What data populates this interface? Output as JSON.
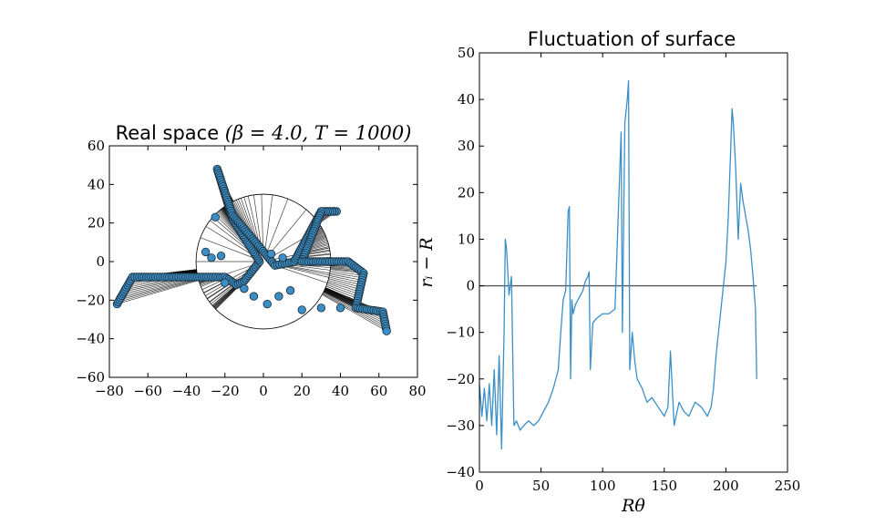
{
  "chart_data": [
    {
      "type": "scatter",
      "title": "Real space (β = 4.0, T = 1000)",
      "title_parts": {
        "text": "Real space ",
        "math": "(β = 4.0, T = 1000)"
      },
      "xlim": [
        -80,
        80
      ],
      "ylim": [
        -60,
        60
      ],
      "xticks": [
        -80,
        -60,
        -40,
        -20,
        0,
        20,
        40,
        60,
        80
      ],
      "yticks": [
        -60,
        -40,
        -20,
        0,
        20,
        40,
        60
      ],
      "xtick_labels": [
        "−80",
        "−60",
        "−40",
        "−20",
        "0",
        "20",
        "40",
        "60",
        "80"
      ],
      "ytick_labels": [
        "−60",
        "−40",
        "−20",
        "0",
        "20",
        "40",
        "60"
      ],
      "reference_circle_radius": 35,
      "grid": false,
      "marker_color": "#3a8fc7",
      "line_color": "#000000",
      "surface_path": [
        [
          -76,
          -22
        ],
        [
          -68,
          -8
        ],
        [
          -20,
          -8
        ],
        [
          -14,
          -12
        ],
        [
          -10,
          -10
        ],
        [
          -2,
          0
        ],
        [
          -16,
          22
        ],
        [
          -24,
          48
        ],
        [
          -16,
          24
        ],
        [
          -4,
          10
        ],
        [
          6,
          -2
        ],
        [
          16,
          0
        ],
        [
          30,
          26
        ],
        [
          38,
          26
        ],
        [
          30,
          26
        ],
        [
          20,
          0
        ],
        [
          44,
          0
        ],
        [
          52,
          -6
        ],
        [
          48,
          -24
        ],
        [
          62,
          -26
        ],
        [
          64,
          -36
        ]
      ],
      "extra_markers": [
        [
          -25,
          23
        ],
        [
          -30,
          5
        ],
        [
          -27,
          2
        ],
        [
          -20,
          -11
        ],
        [
          -10,
          -14
        ],
        [
          -5,
          -18
        ],
        [
          2,
          -22
        ],
        [
          8,
          -18
        ],
        [
          14,
          -15
        ],
        [
          20,
          -25
        ],
        [
          30,
          -24
        ],
        [
          40,
          -24
        ],
        [
          -22,
          3
        ],
        [
          4,
          4
        ],
        [
          10,
          2
        ]
      ]
    },
    {
      "type": "line",
      "title": "Fluctuation of surface",
      "xlabel": "Rθ",
      "ylabel": "r_i − R",
      "ylabel_display": "rᵢ − R",
      "xlim": [
        0,
        250
      ],
      "ylim": [
        -40,
        50
      ],
      "xticks": [
        0,
        50,
        100,
        150,
        200,
        250
      ],
      "yticks": [
        -40,
        -30,
        -20,
        -10,
        0,
        10,
        20,
        30,
        40,
        50
      ],
      "xtick_labels": [
        "0",
        "50",
        "100",
        "150",
        "200",
        "250"
      ],
      "ytick_labels": [
        "−40",
        "−30",
        "−20",
        "−10",
        "0",
        "10",
        "20",
        "30",
        "40",
        "50"
      ],
      "grid": false,
      "series_color": "#3a8fc7",
      "zero_line": {
        "y": 0,
        "x_range": [
          0,
          225
        ],
        "color": "#555555"
      },
      "series": [
        {
          "x": [
            0,
            2,
            4,
            6,
            8,
            10,
            12,
            14,
            16,
            18,
            20,
            21,
            22,
            24,
            26,
            28,
            30,
            33,
            36,
            40,
            44,
            48,
            52,
            56,
            60,
            64,
            66,
            68,
            70,
            72,
            73,
            74,
            75,
            76,
            78,
            80,
            82,
            84,
            86,
            88,
            89,
            90,
            92,
            95,
            100,
            105,
            110,
            115,
            116,
            118,
            120,
            121,
            122,
            124,
            126,
            128,
            132,
            136,
            140,
            145,
            150,
            153,
            155,
            158,
            162,
            166,
            170,
            175,
            180,
            185,
            188,
            190,
            192,
            194,
            196,
            198,
            200,
            202,
            204,
            205,
            206,
            208,
            210,
            212,
            214,
            216,
            218,
            220,
            222,
            224,
            225
          ],
          "y": [
            -21,
            -28,
            -22,
            -29,
            -21,
            -30,
            -18,
            -32,
            -15,
            -35,
            -10,
            10,
            8,
            -2,
            2,
            -30,
            -29,
            -31,
            -30,
            -29,
            -30,
            -29,
            -27,
            -25,
            -22,
            -18,
            -10,
            -3,
            -1,
            16,
            17,
            -20,
            -3,
            -6,
            -4,
            -3,
            -2,
            -1,
            1,
            2,
            3,
            -18,
            -8,
            -7,
            -6,
            -6,
            -5,
            33,
            -10,
            35,
            40,
            44,
            -18,
            -10,
            -16,
            -20,
            -22,
            -25,
            -24,
            -26,
            -28,
            -26,
            -14,
            -30,
            -25,
            -27,
            -28,
            -25,
            -26,
            -28,
            -26,
            -22,
            -15,
            -10,
            -5,
            0,
            5,
            15,
            30,
            38,
            35,
            25,
            10,
            22,
            18,
            15,
            12,
            8,
            2,
            -5,
            -20
          ]
        }
      ]
    }
  ]
}
